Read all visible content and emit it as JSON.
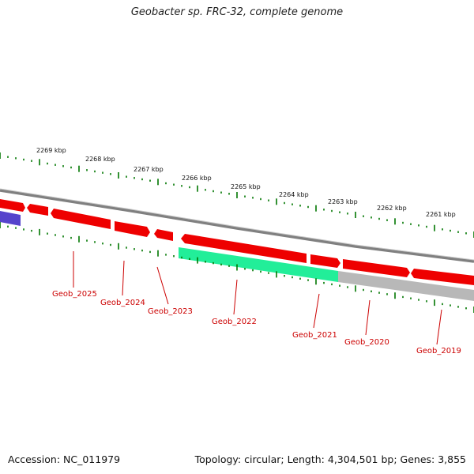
{
  "title": "Geobacter sp. FRC-32, complete genome",
  "footer": {
    "accession": "Accession: NC_011979",
    "topology": "Topology: circular",
    "length": "Length: 4,304,501 bp",
    "genes": "Genes: 3,855"
  },
  "colors": {
    "backbone": "#808080",
    "forward_gene": "#ee0000",
    "cds_green": "#22ee99",
    "reverse_gray": "#b8b8b8",
    "blue_feature": "#5544cc",
    "tick_green": "#007700",
    "gene_label": "#cc0000"
  },
  "ticks_outer": [
    {
      "label": "2269 kbp"
    },
    {
      "label": "2268 kbp"
    },
    {
      "label": "2267 kbp"
    },
    {
      "label": "2266 kbp"
    },
    {
      "label": "2265 kbp"
    },
    {
      "label": "2264 kbp"
    },
    {
      "label": "2263 kbp"
    },
    {
      "label": "2262 kbp"
    },
    {
      "label": "2261 kbp"
    }
  ],
  "genes": [
    {
      "label": "Geob_2025"
    },
    {
      "label": "Geob_2024"
    },
    {
      "label": "Geob_2023"
    },
    {
      "label": "Geob_2022"
    },
    {
      "label": "Geob_2021"
    },
    {
      "label": "Geob_2020"
    },
    {
      "label": "Geob_2019"
    }
  ]
}
